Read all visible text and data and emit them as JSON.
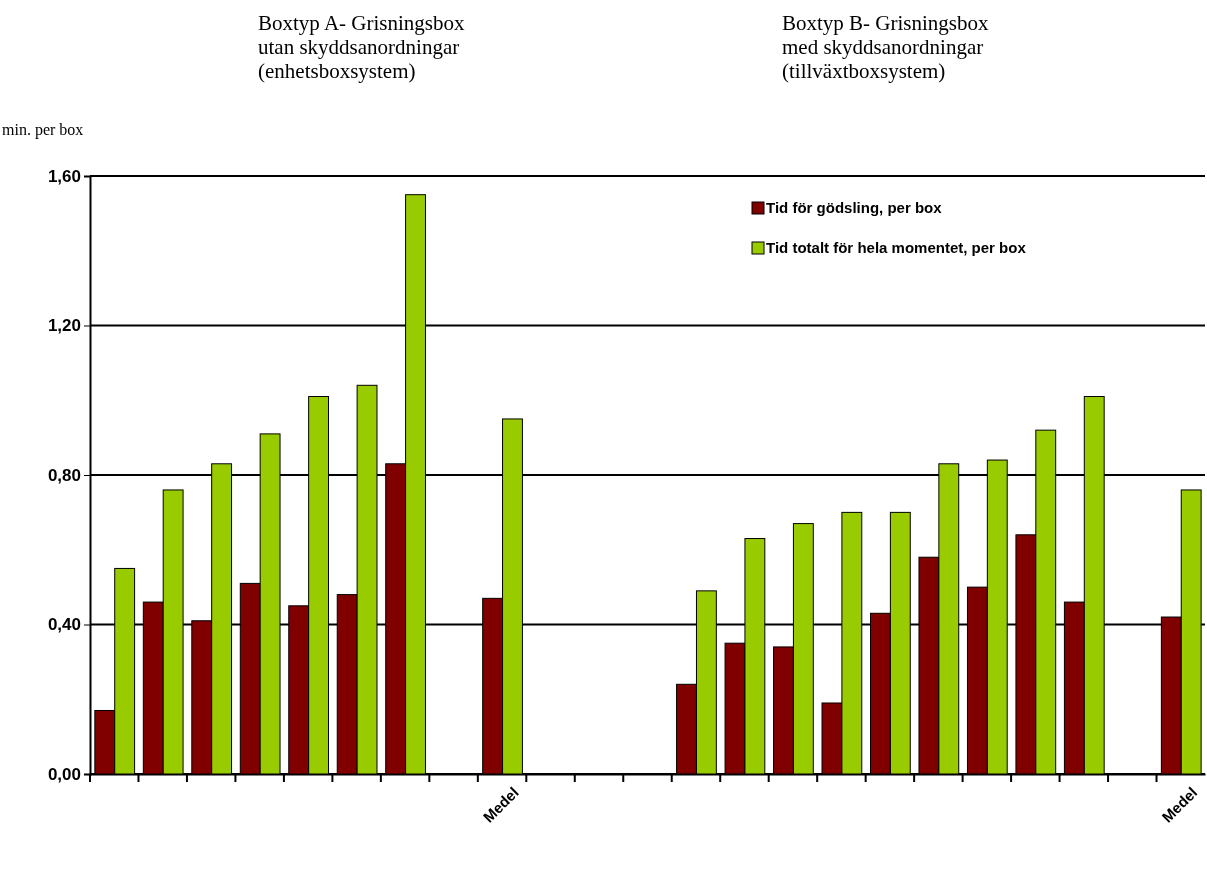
{
  "chart_data": {
    "type": "bar",
    "ylabel": "min. per box",
    "annotations": [
      "Boxtyp A- Grisningsbox\nutan skyddsanordningar\n(enhetsboxsystem)",
      "Boxtyp B- Grisningsbox\nmed skyddsanordningar\n(tillväxtboxsystem)"
    ],
    "categories": [
      null,
      null,
      null,
      null,
      null,
      null,
      null,
      null,
      "Medel",
      null,
      null,
      null,
      null,
      null,
      null,
      null,
      null,
      null,
      null,
      null,
      null,
      null,
      "Medel"
    ],
    "series": [
      {
        "name": "Tid för gödsling, per box",
        "color": "#800000",
        "values": [
          0.17,
          0.46,
          0.41,
          0.51,
          0.45,
          0.48,
          0.83,
          null,
          0.47,
          null,
          null,
          null,
          0.24,
          0.35,
          0.34,
          0.19,
          0.43,
          0.58,
          0.5,
          0.64,
          0.46,
          null,
          0.42
        ]
      },
      {
        "name": "Tid totalt för hela momentet, per box",
        "color": "#99cc00",
        "values": [
          0.55,
          0.76,
          0.83,
          0.91,
          1.01,
          1.04,
          1.55,
          null,
          0.95,
          null,
          null,
          null,
          0.49,
          0.63,
          0.67,
          0.7,
          0.7,
          0.83,
          0.84,
          0.92,
          1.01,
          null,
          0.76
        ]
      }
    ],
    "ylim": [
      0,
      1.6
    ],
    "yticks": [
      {
        "value": 0,
        "label": "0,00"
      },
      {
        "value": 0.4,
        "label": "0,40"
      },
      {
        "value": 0.8,
        "label": "0,80"
      },
      {
        "value": 1.2,
        "label": "1,20"
      },
      {
        "value": 1.6,
        "label": "1,60"
      }
    ],
    "grid": "y",
    "legend": "top right"
  }
}
